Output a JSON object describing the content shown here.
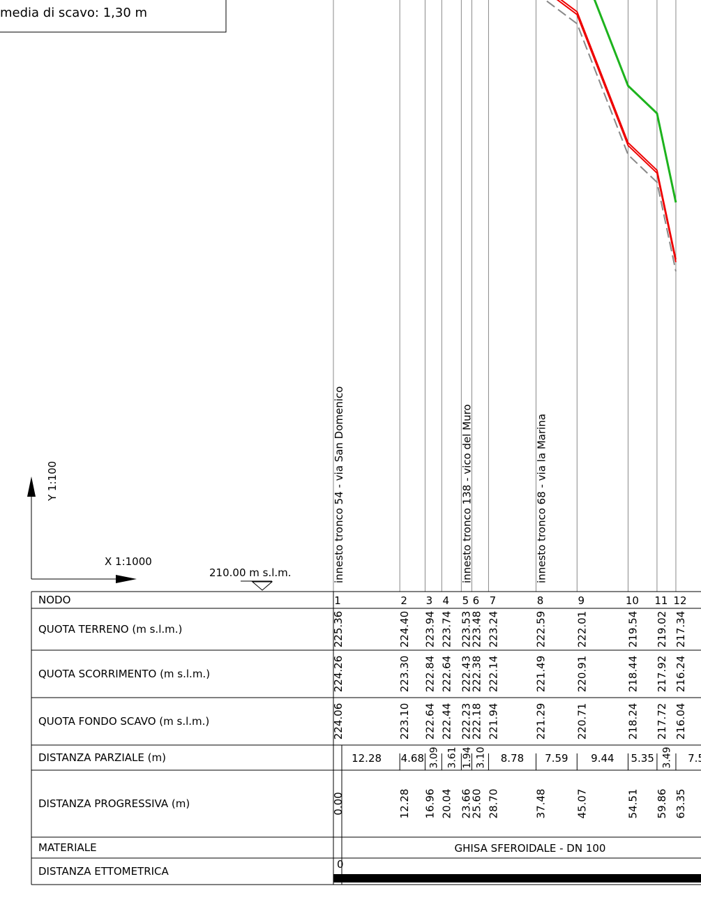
{
  "note_box": "media di scavo: 1,30 m",
  "y_scale": "Y 1:100",
  "x_scale": "X 1:1000",
  "datum": {
    "value": 210,
    "label": "210.00 m s.l.m."
  },
  "annotations": [
    {
      "node": 0,
      "text": "innesto tronco 54 - via San Domenico"
    },
    {
      "node": 4,
      "text": "innesto tronco 138 - vico del Muro"
    },
    {
      "node": 7,
      "text": "innesto tronco 68 - via la Marina"
    }
  ],
  "table": {
    "row_labels": [
      "NODO",
      "QUOTA TERRENO (m s.l.m.)",
      "QUOTA SCORRIMENTO (m s.l.m.)",
      "QUOTA FONDO SCAVO (m s.l.m.)",
      "DISTANZA PARZIALE (m)",
      "DISTANZA PROGRESSIVA (m)",
      "MATERIALE",
      "DISTANZA ETTOMETRICA"
    ],
    "nodes": [
      "1",
      "2",
      "3",
      "4",
      "5",
      "6",
      "7",
      "8",
      "9",
      "10",
      "11",
      "12"
    ],
    "quota_terreno": [
      "225.36",
      "224.40",
      "223.94",
      "223.74",
      "223.53",
      "223.48",
      "223.24",
      "222.59",
      "222.01",
      "219.54",
      "219.02",
      "217.34"
    ],
    "quota_scorrimento": [
      "224.26",
      "223.30",
      "222.84",
      "222.64",
      "222.43",
      "222.38",
      "222.14",
      "221.49",
      "220.91",
      "218.44",
      "217.92",
      "216.24"
    ],
    "quota_fondo_scavo": [
      "224.06",
      "223.10",
      "222.64",
      "222.44",
      "222.23",
      "222.18",
      "221.94",
      "221.29",
      "220.71",
      "218.24",
      "217.72",
      "216.04"
    ],
    "distanza_parziale": [
      "12.28",
      "4.68",
      "3.09",
      "3.61",
      "1.94",
      "3.10",
      "8.78",
      "7.59",
      "9.44",
      "5.35",
      "3.49",
      "7.5"
    ],
    "distanza_progressiva": [
      "0.00",
      "12.28",
      "16.96",
      "20.04",
      "23.66",
      "25.60",
      "28.70",
      "37.48",
      "45.07",
      "54.51",
      "59.86",
      "63.35"
    ],
    "materiale": "GHISA SFEROIDALE - DN 100",
    "ettometrica": "0"
  }
}
